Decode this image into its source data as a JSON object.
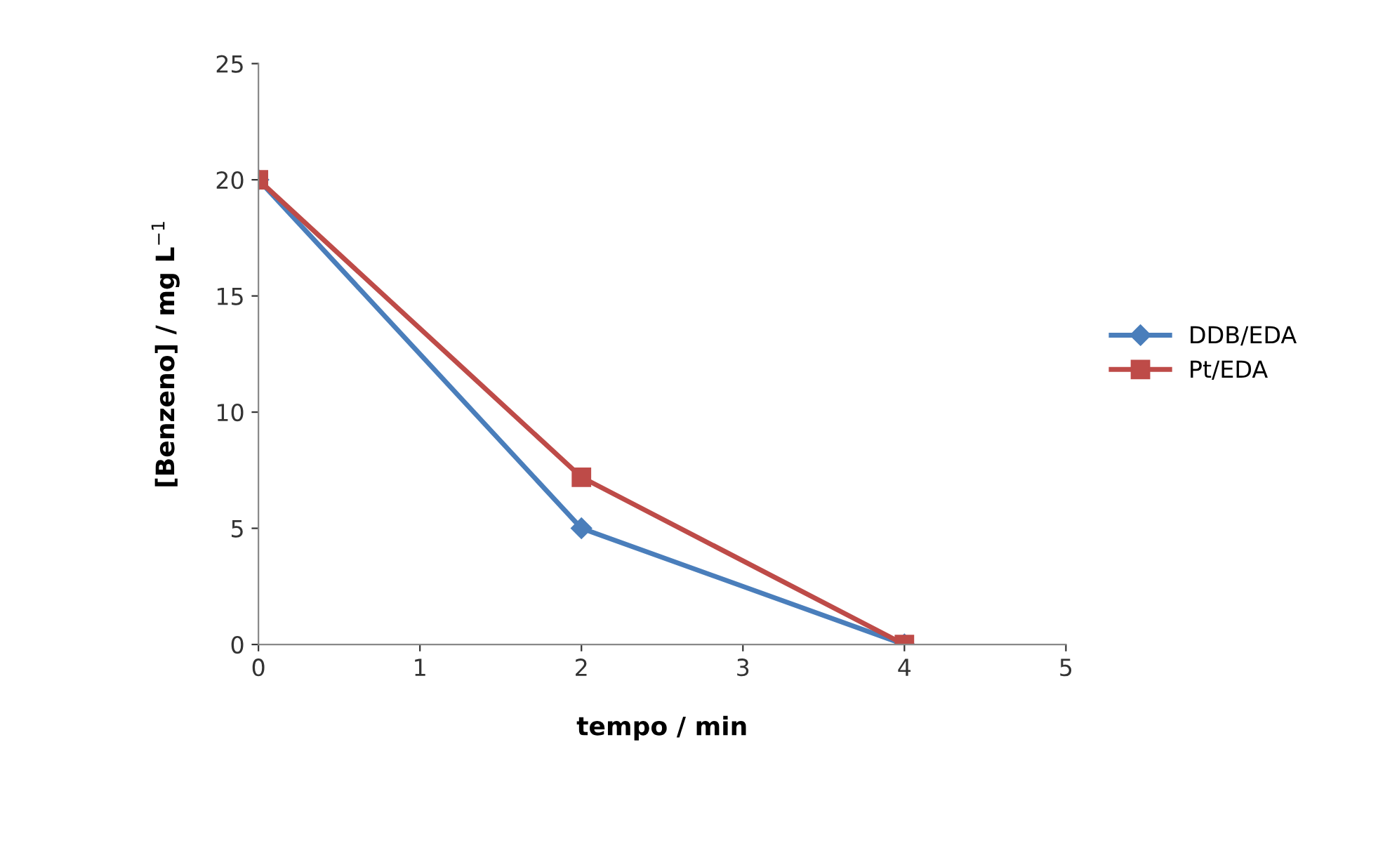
{
  "chart_data": {
    "type": "line",
    "xlabel": "tempo / min",
    "ylabel": "[Benzeno] / mg L$^{−1}$",
    "x": [
      0,
      2,
      4
    ],
    "series": [
      {
        "name": "DDB/EDA",
        "color": "#4a7ebb",
        "values": [
          20,
          5,
          0
        ],
        "marker": "diamond"
      },
      {
        "name": "Pt/EDA",
        "color": "#be4b48",
        "values": [
          20,
          7.2,
          0
        ],
        "marker": "square"
      }
    ],
    "xlim": [
      0,
      5
    ],
    "xticks": [
      0,
      1,
      2,
      3,
      4,
      5
    ],
    "ylim": [
      0,
      25
    ],
    "yticks": [
      0,
      5,
      10,
      15,
      20,
      25
    ],
    "grid": false,
    "legend": "right",
    "line_style": "solid"
  }
}
